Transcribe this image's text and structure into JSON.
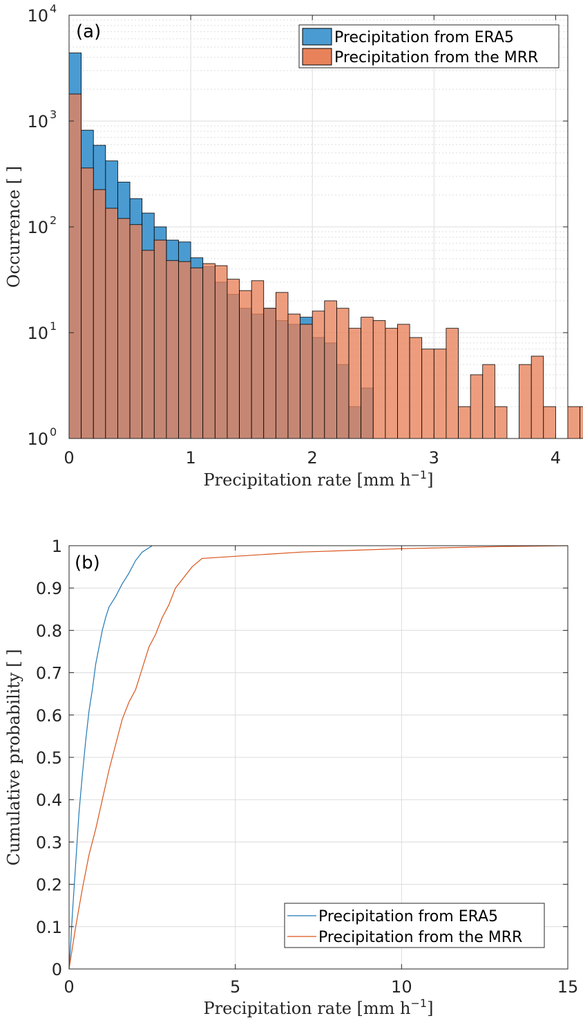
{
  "chart_data": [
    {
      "type": "bar",
      "panel_label": "(a)",
      "xlabel": "Precipitation rate [mm h",
      "xlabel_sup": "−1",
      "xlabel_end": "]",
      "ylabel": "Occurrence [ ]",
      "xlim": [
        0,
        4.1
      ],
      "ylim": [
        1,
        10000
      ],
      "yscale": "log",
      "xticks": [
        "0",
        "1",
        "2",
        "3",
        "4"
      ],
      "yticks": [
        {
          "base": "10",
          "exp": "0",
          "value": 1
        },
        {
          "base": "10",
          "exp": "1",
          "value": 10
        },
        {
          "base": "10",
          "exp": "2",
          "value": 100
        },
        {
          "base": "10",
          "exp": "3",
          "value": 1000
        },
        {
          "base": "10",
          "exp": "4",
          "value": 10000
        }
      ],
      "bin_width": 0.1,
      "grid": true,
      "legend_position": "top-right",
      "series": [
        {
          "name": "Precipitation from ERA5",
          "color": "#4a9bd1",
          "values": [
            4400,
            820,
            590,
            420,
            265,
            185,
            135,
            100,
            75,
            72,
            51,
            42,
            30,
            23,
            17,
            15,
            17,
            13,
            12,
            14,
            9,
            8,
            5,
            2,
            3,
            1
          ]
        },
        {
          "name": "Precipitation from the MRR",
          "color": "#e8825a",
          "values": [
            1800,
            360,
            225,
            150,
            120,
            105,
            60,
            75,
            48,
            47,
            41,
            45,
            43,
            32,
            25,
            31,
            17,
            24,
            15,
            12,
            16,
            20,
            17,
            11,
            14,
            13,
            11,
            12,
            9,
            7,
            7,
            11,
            2,
            4,
            5,
            2,
            0,
            5,
            6,
            2,
            0,
            2,
            2
          ]
        }
      ]
    },
    {
      "type": "line",
      "panel_label": "(b)",
      "xlabel": "Precipitation rate [mm h",
      "xlabel_sup": "−1",
      "xlabel_end": "]",
      "ylabel": "Cumulative probability [ ]",
      "xlim": [
        0,
        15
      ],
      "ylim": [
        0,
        1
      ],
      "xticks": [
        "0",
        "5",
        "10",
        "15"
      ],
      "yticks": [
        "0",
        "0.1",
        "0.2",
        "0.3",
        "0.4",
        "0.5",
        "0.6",
        "0.7",
        "0.8",
        "0.9",
        "1"
      ],
      "grid": true,
      "legend_position": "bottom-right",
      "series": [
        {
          "name": "Precipitation from ERA5",
          "color": "#1f77b4",
          "points": [
            [
              0,
              0
            ],
            [
              0.05,
              0.06
            ],
            [
              0.1,
              0.13
            ],
            [
              0.2,
              0.25
            ],
            [
              0.3,
              0.37
            ],
            [
              0.4,
              0.46
            ],
            [
              0.5,
              0.54
            ],
            [
              0.6,
              0.61
            ],
            [
              0.7,
              0.66
            ],
            [
              0.8,
              0.72
            ],
            [
              0.9,
              0.76
            ],
            [
              1.0,
              0.8
            ],
            [
              1.1,
              0.83
            ],
            [
              1.2,
              0.855
            ],
            [
              1.4,
              0.88
            ],
            [
              1.6,
              0.91
            ],
            [
              1.8,
              0.935
            ],
            [
              2.0,
              0.965
            ],
            [
              2.2,
              0.985
            ],
            [
              2.4,
              0.995
            ],
            [
              2.5,
              1.0
            ]
          ]
        },
        {
          "name": "Precipitation from the MRR",
          "color": "#d95319",
          "points": [
            [
              0,
              0
            ],
            [
              0.1,
              0.05
            ],
            [
              0.2,
              0.1
            ],
            [
              0.4,
              0.19
            ],
            [
              0.6,
              0.27
            ],
            [
              0.8,
              0.33
            ],
            [
              1.0,
              0.4
            ],
            [
              1.2,
              0.47
            ],
            [
              1.4,
              0.53
            ],
            [
              1.6,
              0.59
            ],
            [
              1.8,
              0.63
            ],
            [
              2.0,
              0.66
            ],
            [
              2.2,
              0.71
            ],
            [
              2.4,
              0.76
            ],
            [
              2.6,
              0.79
            ],
            [
              2.8,
              0.83
            ],
            [
              3.0,
              0.86
            ],
            [
              3.2,
              0.9
            ],
            [
              3.4,
              0.92
            ],
            [
              3.7,
              0.95
            ],
            [
              4.0,
              0.97
            ],
            [
              5.0,
              0.975
            ],
            [
              7.0,
              0.985
            ],
            [
              10.0,
              0.993
            ],
            [
              13.0,
              0.998
            ],
            [
              15.0,
              1.0
            ]
          ]
        }
      ]
    }
  ]
}
